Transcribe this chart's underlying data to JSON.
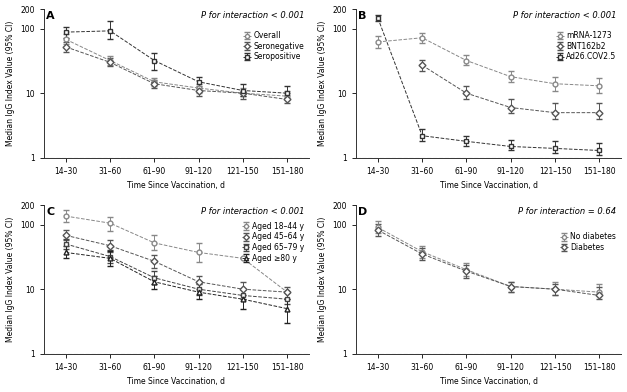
{
  "x_labels": [
    "14–30",
    "31–60",
    "61–90",
    "91–120",
    "121–150",
    "151–180"
  ],
  "x_vals": [
    1,
    2,
    3,
    4,
    5,
    6
  ],
  "background_color": "#ffffff",
  "panels": {
    "A": {
      "label": "A",
      "p_text": "P for interaction < 0.001",
      "legend_loc": "center right",
      "series": [
        {
          "name": "Overall",
          "x": [
            1,
            2,
            3,
            4,
            5,
            6
          ],
          "y": [
            68,
            32,
            15,
            12,
            10,
            9
          ],
          "lo": [
            57,
            27,
            13,
            10,
            9,
            8
          ],
          "hi": [
            82,
            37,
            17,
            14,
            12,
            11
          ],
          "marker": "o",
          "color": "#888888",
          "mfc": "white",
          "ms": 3.5
        },
        {
          "name": "Seronegative",
          "x": [
            1,
            2,
            3,
            4,
            5,
            6
          ],
          "y": [
            52,
            30,
            14,
            11,
            10,
            8
          ],
          "lo": [
            44,
            26,
            12,
            9,
            8,
            7
          ],
          "hi": [
            61,
            35,
            16,
            13,
            11,
            10
          ],
          "marker": "D",
          "color": "#555555",
          "mfc": "white",
          "ms": 3.5
        },
        {
          "name": "Seropositive",
          "x": [
            1,
            2,
            3,
            4,
            5,
            6
          ],
          "y": [
            88,
            92,
            32,
            15,
            11,
            10
          ],
          "lo": [
            72,
            68,
            23,
            12,
            9,
            8
          ],
          "hi": [
            107,
            130,
            42,
            18,
            14,
            13
          ],
          "marker": "s",
          "color": "#333333",
          "mfc": "white",
          "ms": 3.5
        }
      ]
    },
    "B": {
      "label": "B",
      "p_text": "P for interaction < 0.001",
      "legend_loc": "center right",
      "series": [
        {
          "name": "mRNA-1273",
          "x": [
            1,
            2,
            3,
            4,
            5,
            6
          ],
          "y": [
            62,
            72,
            32,
            18,
            14,
            13
          ],
          "lo": [
            50,
            60,
            27,
            15,
            11,
            10
          ],
          "hi": [
            76,
            85,
            39,
            22,
            18,
            17
          ],
          "marker": "o",
          "color": "#888888",
          "mfc": "white",
          "ms": 3.5
        },
        {
          "name": "BNT162b2",
          "x": [
            1,
            2,
            3,
            4,
            5,
            6
          ],
          "y": [
            null,
            27,
            10,
            6,
            5,
            5
          ],
          "lo": [
            null,
            22,
            8,
            5,
            4,
            4
          ],
          "hi": [
            null,
            33,
            13,
            8,
            7,
            7
          ],
          "marker": "D",
          "color": "#555555",
          "mfc": "white",
          "ms": 3.5
        },
        {
          "name": "Ad26.COV2.5",
          "x": [
            1,
            2,
            3,
            4,
            5,
            6
          ],
          "y": [
            145,
            2.2,
            1.8,
            1.5,
            1.4,
            1.3
          ],
          "lo": [
            130,
            1.8,
            1.5,
            1.3,
            1.2,
            1.1
          ],
          "hi": [
            162,
            2.8,
            2.2,
            1.9,
            1.8,
            1.7
          ],
          "marker": "s",
          "color": "#333333",
          "mfc": "white",
          "ms": 3.5
        }
      ]
    },
    "C": {
      "label": "C",
      "p_text": "P for interaction < 0.001",
      "legend_loc": "center right",
      "series": [
        {
          "name": "Aged 18–44 y",
          "x": [
            1,
            2,
            3,
            4,
            5,
            6
          ],
          "y": [
            135,
            105,
            52,
            37,
            30,
            9
          ],
          "lo": [
            108,
            80,
            40,
            26,
            null,
            null
          ],
          "hi": [
            168,
            130,
            70,
            52,
            null,
            null
          ],
          "marker": "o",
          "color": "#888888",
          "mfc": "white",
          "ms": 3.5
        },
        {
          "name": "Aged 45–64 y",
          "x": [
            1,
            2,
            3,
            4,
            5,
            6
          ],
          "y": [
            68,
            47,
            27,
            13,
            10,
            9
          ],
          "lo": [
            57,
            37,
            21,
            10,
            8,
            7
          ],
          "hi": [
            82,
            58,
            34,
            16,
            13,
            11
          ],
          "marker": "D",
          "color": "#555555",
          "mfc": "white",
          "ms": 3.5
        },
        {
          "name": "Aged 65–79 y",
          "x": [
            1,
            2,
            3,
            4,
            5,
            6
          ],
          "y": [
            50,
            32,
            15,
            10,
            8,
            7
          ],
          "lo": [
            42,
            25,
            12,
            8,
            7,
            6
          ],
          "hi": [
            60,
            41,
            19,
            13,
            10,
            9
          ],
          "marker": "s",
          "color": "#444444",
          "mfc": "white",
          "ms": 3.5
        },
        {
          "name": "Aged ≥80 y",
          "x": [
            1,
            2,
            3,
            4,
            5,
            6
          ],
          "y": [
            37,
            30,
            13,
            9,
            7,
            5
          ],
          "lo": [
            30,
            23,
            10,
            7,
            5,
            3
          ],
          "hi": [
            46,
            39,
            16,
            12,
            10,
            7
          ],
          "marker": "^",
          "color": "#222222",
          "mfc": "white",
          "ms": 3.5
        }
      ]
    },
    "D": {
      "label": "D",
      "p_text": "P for interaction = 0.64",
      "legend_loc": "center right",
      "series": [
        {
          "name": "No diabetes",
          "x": [
            1,
            2,
            3,
            4,
            5,
            6
          ],
          "y": [
            90,
            38,
            20,
            11,
            10,
            9
          ],
          "lo": [
            73,
            30,
            16,
            9,
            8,
            8
          ],
          "hi": [
            112,
            47,
            25,
            13,
            13,
            12
          ],
          "marker": "o",
          "color": "#888888",
          "mfc": "white",
          "ms": 3.5
        },
        {
          "name": "Diabetes",
          "x": [
            1,
            2,
            3,
            4,
            5,
            6
          ],
          "y": [
            82,
            35,
            19,
            11,
            10,
            8
          ],
          "lo": [
            66,
            28,
            15,
            9,
            8,
            7
          ],
          "hi": [
            102,
            44,
            24,
            13,
            12,
            11
          ],
          "marker": "D",
          "color": "#555555",
          "mfc": "white",
          "ms": 3.5
        }
      ]
    }
  }
}
